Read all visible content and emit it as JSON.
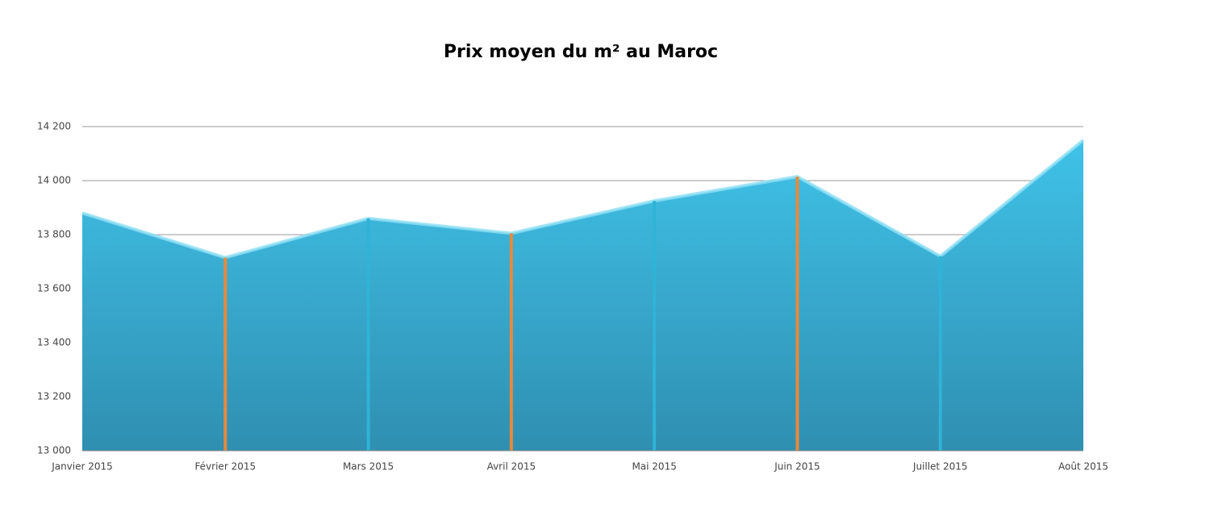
{
  "chart_data": {
    "type": "area",
    "title": "Prix moyen du m² au Maroc",
    "categories": [
      "Janvier 2015",
      "Février 2015",
      "Mars 2015",
      "Avril 2015",
      "Mai 2015",
      "Juin 2015",
      "Juillet 2015",
      "Août 2015"
    ],
    "values": [
      13880,
      13715,
      13860,
      13805,
      13925,
      14015,
      13720,
      14150
    ],
    "color": "#3bb9de",
    "drop_line_colors": [
      "#e8893a",
      "#2fb3d6"
    ],
    "ylim": [
      13000,
      14200
    ],
    "yticks": [
      {
        "value": 13000,
        "label": "13 000"
      },
      {
        "value": 13200,
        "label": "13 200"
      },
      {
        "value": 13400,
        "label": "13 400"
      },
      {
        "value": 13600,
        "label": "13 600"
      },
      {
        "value": 13800,
        "label": "13 800"
      },
      {
        "value": 14000,
        "label": "14 000"
      },
      {
        "value": 14200,
        "label": "14 200"
      }
    ],
    "grid": true
  }
}
